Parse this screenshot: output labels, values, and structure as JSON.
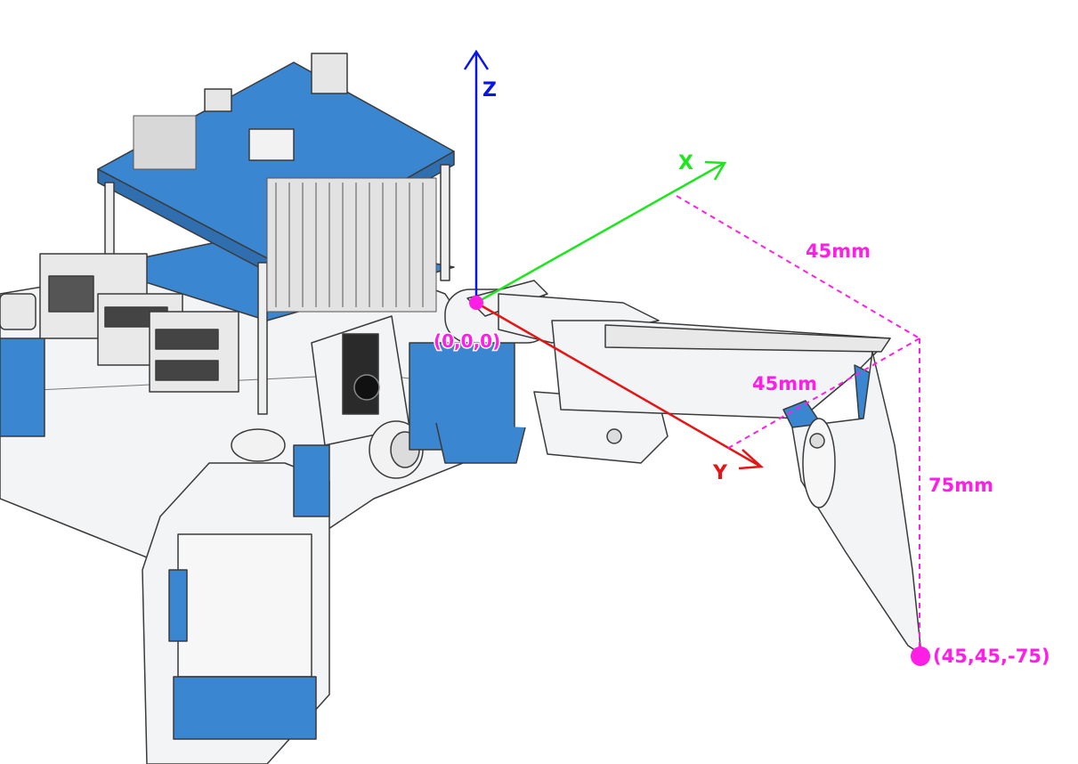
{
  "axes": {
    "z": {
      "label": "Z",
      "color": "#0a14e6"
    },
    "x": {
      "label": "X",
      "color": "#1ee61e"
    },
    "y": {
      "label": "Y",
      "color": "#e61414"
    }
  },
  "origin": {
    "label": "(0,0,0)",
    "color": "#ff1ee6"
  },
  "foot_point": {
    "label": "(45,45,-75)",
    "color": "#ff1ee6"
  },
  "dimensions": {
    "x_offset": "45mm",
    "y_offset": "45mm",
    "z_offset": "75mm",
    "color": "#ff1ee6"
  },
  "robot_colors": {
    "blue": "#3b86d0",
    "white": "#f2f4f6",
    "outline": "#3a3a3a",
    "dark": "#2a2a2a"
  }
}
